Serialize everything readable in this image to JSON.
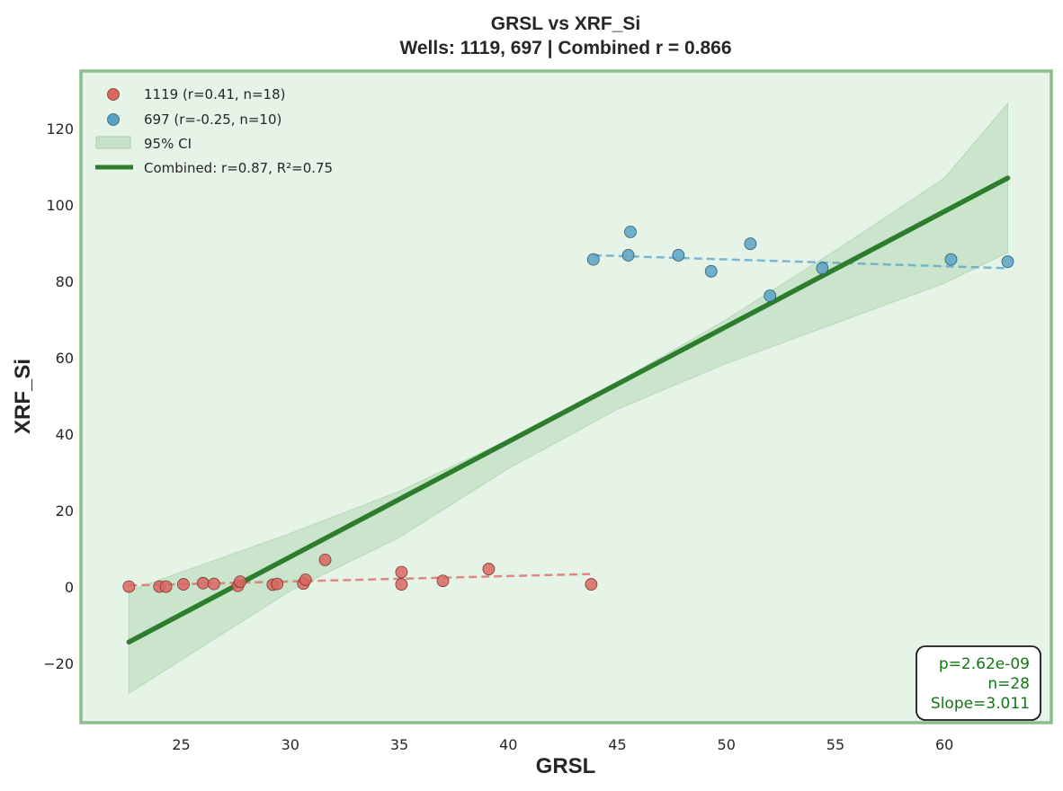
{
  "chart_data": {
    "type": "scatter",
    "title": "GRSL vs XRF_Si",
    "subtitle": "Wells: 1119, 697 | Combined r = 0.866",
    "xlabel": "GRSL",
    "ylabel": "XRF_Si",
    "xlim": [
      20.4,
      64.9
    ],
    "ylim": [
      -35.5,
      135.0
    ],
    "xticks": [
      25,
      30,
      35,
      40,
      45,
      50,
      55,
      60
    ],
    "yticks": [
      -20,
      0,
      20,
      40,
      60,
      80,
      100,
      120
    ],
    "ytick_labels": [
      "−20",
      "0",
      "20",
      "40",
      "60",
      "80",
      "100",
      "120"
    ],
    "grid": false,
    "legend_position": "top-left",
    "colors": {
      "background": "#e6f4e8",
      "frame": "#8cbd8e",
      "combined_line": "#2e7d2e",
      "ci_fill": "#c5e1c7",
      "stats_text": "#117711"
    },
    "series": [
      {
        "name": "1119 (r=0.41, n=18)",
        "color": "#d9665f",
        "points": [
          [
            22.6,
            0.1
          ],
          [
            24.0,
            0.1
          ],
          [
            24.3,
            0.1
          ],
          [
            25.1,
            0.7
          ],
          [
            26.0,
            1.0
          ],
          [
            26.5,
            0.8
          ],
          [
            27.6,
            0.3
          ],
          [
            27.7,
            1.4
          ],
          [
            29.2,
            0.6
          ],
          [
            29.4,
            0.8
          ],
          [
            30.6,
            0.9
          ],
          [
            30.7,
            1.9
          ],
          [
            31.6,
            7.1
          ],
          [
            35.1,
            3.9
          ],
          [
            35.1,
            0.7
          ],
          [
            37.0,
            1.6
          ],
          [
            39.1,
            4.7
          ],
          [
            43.8,
            0.7
          ]
        ],
        "fit_line": [
          [
            22.6,
            0.4
          ],
          [
            43.8,
            3.4
          ]
        ]
      },
      {
        "name": "697 (r=-0.25, n=10)",
        "color": "#5aa2c4",
        "points": [
          [
            43.9,
            85.7
          ],
          [
            45.5,
            86.8
          ],
          [
            45.6,
            92.9
          ],
          [
            47.8,
            86.8
          ],
          [
            49.3,
            82.6
          ],
          [
            51.1,
            89.8
          ],
          [
            52.0,
            76.2
          ],
          [
            54.4,
            83.4
          ],
          [
            60.3,
            85.7
          ],
          [
            62.9,
            85.1
          ]
        ],
        "fit_line": [
          [
            43.9,
            86.8
          ],
          [
            62.9,
            83.4
          ]
        ]
      }
    ],
    "ci_label": "95% CI",
    "combined": {
      "label": "Combined: r=0.87, R²=0.75",
      "line": [
        [
          22.6,
          -14.4
        ],
        [
          62.9,
          107.0
        ]
      ],
      "ci_upper": [
        [
          22.6,
          -1.0
        ],
        [
          30.0,
          14.0
        ],
        [
          35.0,
          25.0
        ],
        [
          40.0,
          38.5
        ],
        [
          45.0,
          53.5
        ],
        [
          50.0,
          70.0
        ],
        [
          55.0,
          88.0
        ],
        [
          60.0,
          107.0
        ],
        [
          62.9,
          126.5
        ]
      ],
      "ci_lower": [
        [
          22.6,
          -27.8
        ],
        [
          30.0,
          -1.0
        ],
        [
          35.0,
          13.0
        ],
        [
          40.0,
          31.0
        ],
        [
          45.0,
          46.5
        ],
        [
          50.0,
          58.5
        ],
        [
          55.0,
          69.0
        ],
        [
          60.0,
          79.5
        ],
        [
          62.9,
          87.5
        ]
      ]
    },
    "stats": [
      "p=2.62e-09",
      "n=28",
      "Slope=3.011"
    ]
  }
}
